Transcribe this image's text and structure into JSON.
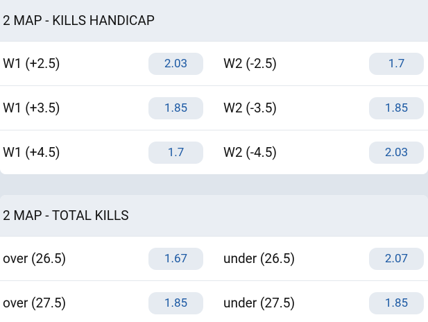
{
  "sections": [
    {
      "title": "2 MAP - KILLS HANDICAP",
      "rows": [
        [
          {
            "label": "W1 (+2.5)",
            "odds": "2.03"
          },
          {
            "label": "W2 (-2.5)",
            "odds": "1.7"
          }
        ],
        [
          {
            "label": "W1 (+3.5)",
            "odds": "1.85"
          },
          {
            "label": "W2 (-3.5)",
            "odds": "1.85"
          }
        ],
        [
          {
            "label": "W1 (+4.5)",
            "odds": "1.7"
          },
          {
            "label": "W2 (-4.5)",
            "odds": "2.03"
          }
        ]
      ]
    },
    {
      "title": "2 MAP - TOTAL KILLS",
      "rows": [
        [
          {
            "label": "over (26.5)",
            "odds": "1.67"
          },
          {
            "label": "under (26.5)",
            "odds": "2.07"
          }
        ],
        [
          {
            "label": "over (27.5)",
            "odds": "1.85"
          },
          {
            "label": "under (27.5)",
            "odds": "1.85"
          }
        ]
      ]
    }
  ]
}
